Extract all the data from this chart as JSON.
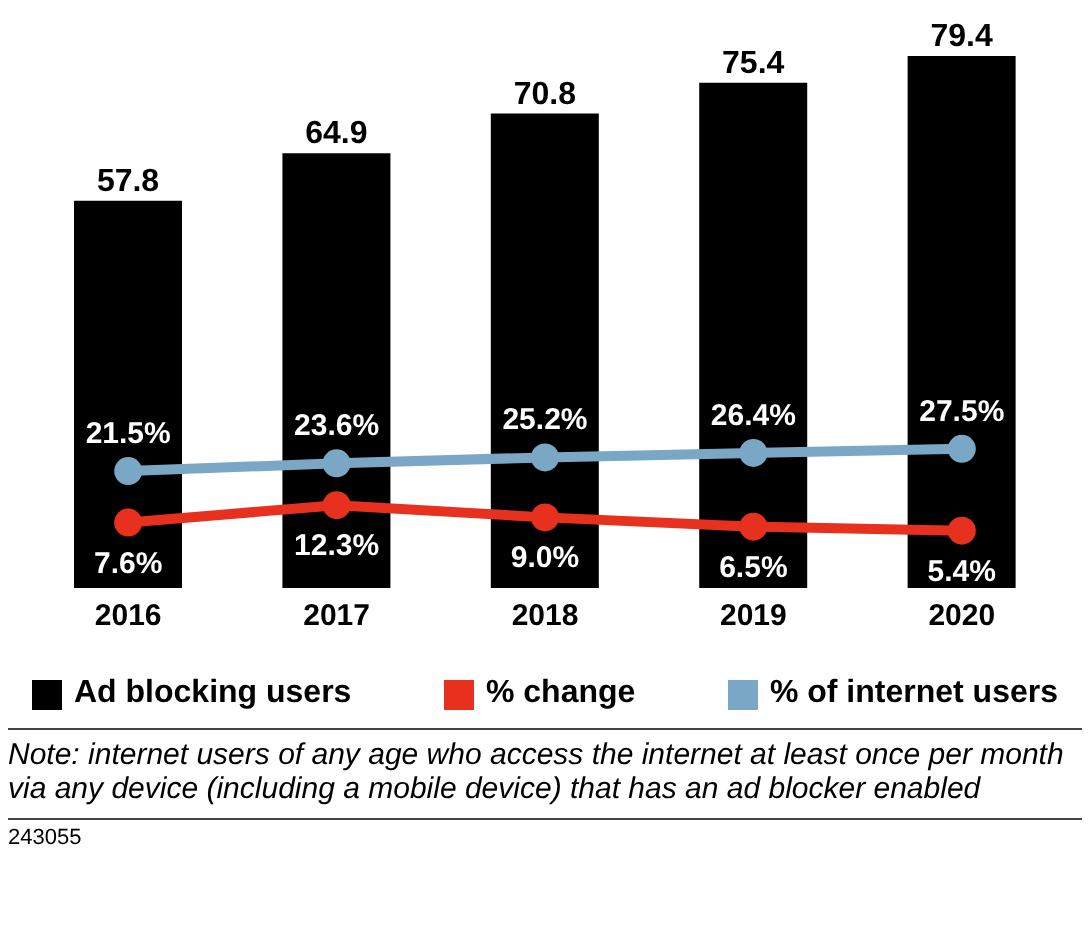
{
  "chart_data": {
    "type": "bar",
    "categories": [
      "2016",
      "2017",
      "2018",
      "2019",
      "2020"
    ],
    "series": [
      {
        "name": "Ad blocking users",
        "color": "#000000",
        "values": [
          57.8,
          64.9,
          70.8,
          75.4,
          79.4
        ]
      },
      {
        "name": "% change",
        "type": "line",
        "axis": "y2",
        "color": "#e8301f",
        "values": [
          7.6,
          12.3,
          9.0,
          6.5,
          5.4
        ],
        "value_labels": [
          "7.6%",
          "12.3%",
          "9.0%",
          "6.5%",
          "5.4%"
        ]
      },
      {
        "name": "% of internet users",
        "type": "line",
        "axis": "y2",
        "color": "#7ba7c6",
        "values": [
          21.5,
          23.6,
          25.2,
          26.4,
          27.5
        ],
        "value_labels": [
          "21.5%",
          "23.6%",
          "25.2%",
          "26.4%",
          "27.5%"
        ]
      }
    ],
    "data_labels": true,
    "marker": "circle",
    "line_style": "solid",
    "grid": false,
    "legend": "bottom",
    "annotations": [
      "Note: internet users of any age who access the internet at least once per month via any device (including a mobile device) that has an ad blocker enabled",
      "243055"
    ]
  }
}
